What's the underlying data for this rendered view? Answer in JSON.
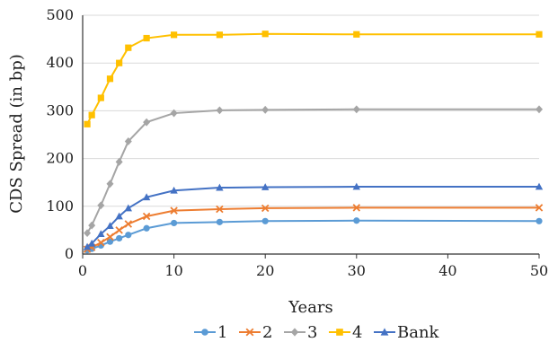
{
  "chart_data": {
    "type": "line",
    "xlabel": "Years",
    "ylabel": "CDS Spread (in bp)",
    "xlim": [
      0,
      50
    ],
    "ylim": [
      0,
      500
    ],
    "xticks": [
      0,
      10,
      20,
      30,
      40,
      50
    ],
    "yticks": [
      0,
      100,
      200,
      300,
      400,
      500
    ],
    "grid": "horizontal",
    "legend_position": "bottom",
    "x": [
      0.5,
      1,
      2,
      3,
      4,
      5,
      7,
      10,
      15,
      20,
      30,
      50
    ],
    "series": [
      {
        "name": "1",
        "color": "#5b9bd5",
        "marker": "circle",
        "values": [
          8,
          11,
          18,
          26,
          33,
          40,
          54,
          65,
          67,
          69,
          70,
          69
        ]
      },
      {
        "name": "2",
        "color": "#ed7d31",
        "marker": "x",
        "values": [
          10,
          14,
          24,
          36,
          50,
          63,
          79,
          91,
          94,
          96,
          97,
          97
        ]
      },
      {
        "name": "3",
        "color": "#a5a5a5",
        "marker": "diamond",
        "values": [
          44,
          60,
          102,
          147,
          193,
          236,
          276,
          295,
          301,
          302,
          303,
          303
        ]
      },
      {
        "name": "4",
        "color": "#ffc000",
        "marker": "square",
        "values": [
          272,
          291,
          327,
          367,
          400,
          432,
          452,
          459,
          459,
          461,
          460,
          460
        ]
      },
      {
        "name": "Bank",
        "color": "#4472c4",
        "marker": "triangle",
        "values": [
          15,
          22,
          42,
          59,
          79,
          96,
          119,
          133,
          139,
          140,
          141,
          141
        ]
      }
    ]
  }
}
